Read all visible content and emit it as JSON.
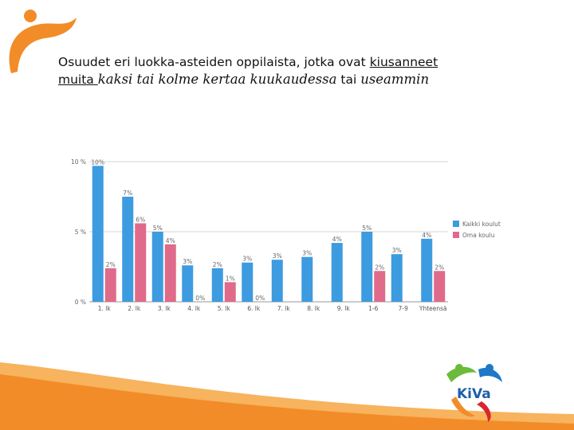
{
  "slide": {
    "title_part1": "Osuudet eri luokka-asteiden oppilaista, jotka ovat ",
    "title_underlined1": "kiusanneet",
    "title_underlined2": "muita ",
    "title_italic1": "kaksi tai kolme kertaa kuukaudessa",
    "title_mid": " tai ",
    "title_italic2": "useammin"
  },
  "logo": {
    "text": "KiVa"
  },
  "colors": {
    "series1": "#3d9be0",
    "series2": "#e06a8a",
    "accent": "#f28c28"
  },
  "chart_data": {
    "type": "bar",
    "categories": [
      "1. lk",
      "2. lk",
      "3. lk",
      "4. lk",
      "5. lk",
      "6. lk",
      "7. lk",
      "8. lk",
      "9. lk",
      "1-6",
      "7-9",
      "Yhteensä"
    ],
    "series": [
      {
        "name": "Kaikki koulut",
        "color": "#3d9be0",
        "values": [
          9.7,
          7.5,
          5.0,
          2.6,
          2.4,
          2.8,
          3.0,
          3.2,
          4.2,
          5.0,
          3.4,
          4.5
        ],
        "labels": [
          "10%",
          "7%",
          "5%",
          "3%",
          "2%",
          "3%",
          "3%",
          "3%",
          "4%",
          "5%",
          "3%",
          "4%"
        ]
      },
      {
        "name": "Oma koulu",
        "color": "#e06a8a",
        "values": [
          2.4,
          5.6,
          4.1,
          0,
          1.4,
          0,
          null,
          null,
          null,
          2.2,
          null,
          2.2
        ],
        "labels": [
          "2%",
          "6%",
          "4%",
          "0%",
          "1%",
          "0%",
          null,
          null,
          null,
          "2%",
          null,
          "2%"
        ]
      }
    ],
    "yticks": [
      "0 %",
      "5 %",
      "10 %"
    ],
    "ylim": [
      0,
      10
    ],
    "grid": true,
    "legend_position": "right"
  }
}
